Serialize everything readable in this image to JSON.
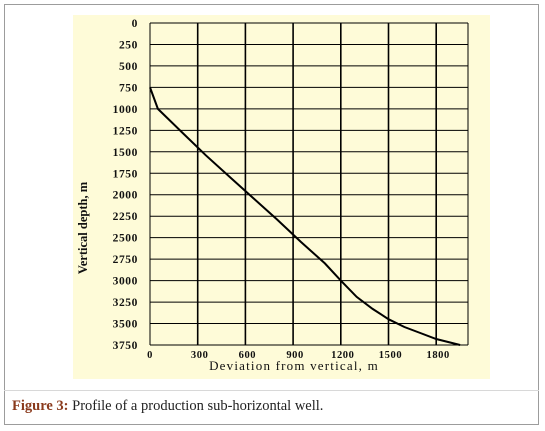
{
  "chart_data": {
    "type": "line",
    "title": "",
    "xlabel": "Deviation from vertical, m",
    "ylabel": "Vertical depth, m",
    "xlim": [
      0,
      2000
    ],
    "ylim": [
      0,
      3750
    ],
    "y_inverted": true,
    "grid": true,
    "x_ticks": [
      0,
      300,
      600,
      900,
      1200,
      1500,
      1800
    ],
    "x_grid": [
      300,
      600,
      900,
      1200,
      1500,
      1800
    ],
    "y_ticks": [
      0,
      250,
      500,
      750,
      1000,
      1250,
      1500,
      1750,
      2000,
      2250,
      2500,
      2750,
      3000,
      3250,
      3500,
      3750
    ],
    "series": [
      {
        "x": [
          0,
          50,
          200,
          350,
          500,
          650,
          800,
          950,
          1100,
          1200,
          1300,
          1400,
          1500,
          1600,
          1700,
          1800,
          1950
        ],
        "y": [
          750,
          1000,
          1270,
          1540,
          1790,
          2040,
          2290,
          2550,
          2800,
          3000,
          3190,
          3330,
          3450,
          3540,
          3610,
          3680,
          3750
        ]
      }
    ],
    "colors": {
      "line": "#000000",
      "grid": "#000000",
      "plot_bg": "#fefbd8"
    }
  },
  "caption": {
    "label": "Figure 3:",
    "text": "Profile of a production sub-horizontal well."
  }
}
